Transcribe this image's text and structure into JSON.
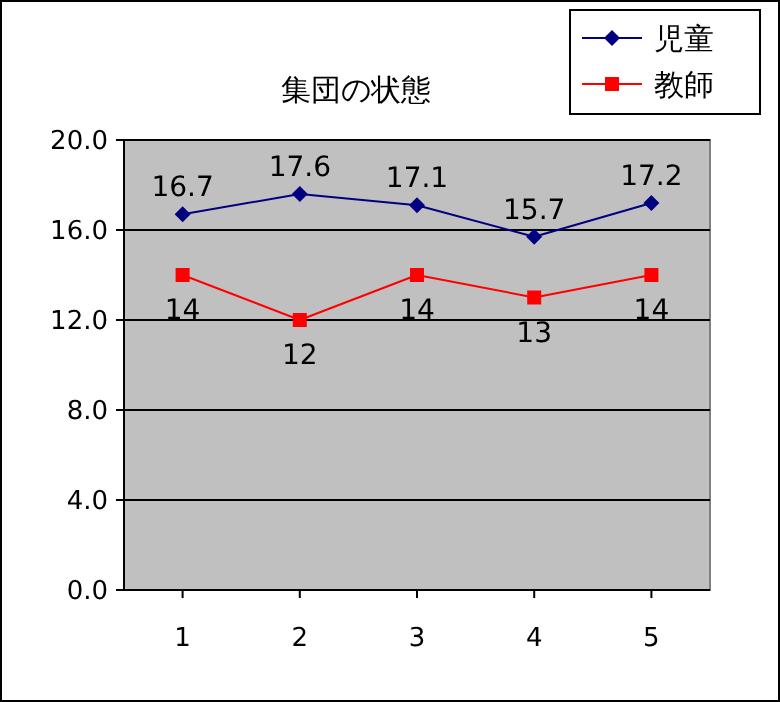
{
  "chart_data": {
    "type": "line",
    "title": "集団の状態",
    "categories": [
      "1",
      "2",
      "3",
      "4",
      "5"
    ],
    "series": [
      {
        "name": "児童",
        "color": "#000080",
        "marker": "diamond",
        "values": [
          16.7,
          17.6,
          17.1,
          15.7,
          17.2
        ]
      },
      {
        "name": "教師",
        "color": "#ff0000",
        "marker": "square",
        "values": [
          14,
          12,
          14,
          13,
          14
        ]
      }
    ],
    "ylim": [
      0,
      20
    ],
    "yticks": [
      {
        "value": 0,
        "label": "0.0"
      },
      {
        "value": 4,
        "label": "4.0"
      },
      {
        "value": 8,
        "label": "8.0"
      },
      {
        "value": 12,
        "label": "12.0"
      },
      {
        "value": 16,
        "label": "16.0"
      },
      {
        "value": 20,
        "label": "20.0"
      }
    ],
    "grid": "y",
    "legend": "top right",
    "data_labels": true,
    "line_style": "solid"
  }
}
